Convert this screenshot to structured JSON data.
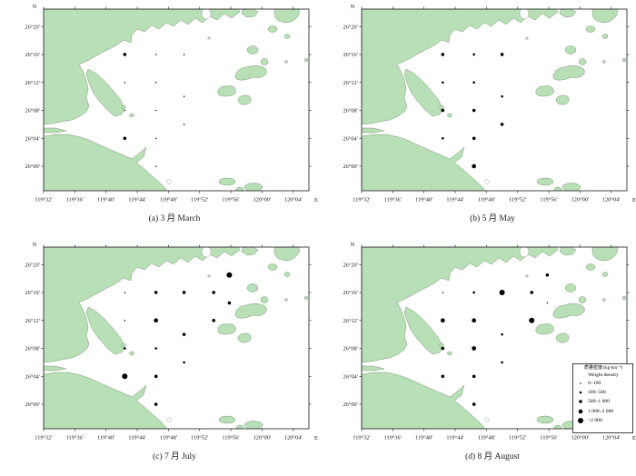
{
  "figure": {
    "bg": "#ffffff",
    "colors": {
      "land_fill": "#b8dfb5",
      "land_stroke": "#70906e",
      "sea_fill": "#ffffff",
      "frame": "#1a1a1a",
      "dot": "#000000"
    }
  },
  "chart_data": {
    "type": "scatter",
    "description": "Bubble maps of weight density at fixed sampling stations in a bay, four survey months",
    "axis": {
      "north_label": "N",
      "east_label": "E",
      "lon_tick_labels": [
        "119°32′",
        "119°36′",
        "119°40′",
        "119°44′",
        "119°48′",
        "119°52′",
        "119°56′",
        "120°00′",
        "120°04′"
      ],
      "lon_tick_arcmin": [
        32,
        36,
        40,
        44,
        48,
        52,
        56,
        60,
        64
      ],
      "lat_tick_labels": [
        "26°20′",
        "26°16′",
        "26°12′",
        "26°08′",
        "26°04′",
        "26°00′"
      ],
      "lat_tick_arcmin": [
        20,
        16,
        12,
        8,
        4,
        0
      ],
      "lon_range_arcmin_past_119E": [
        32,
        66
      ],
      "lat_range_arcmin_past_26N": [
        -3.5,
        22.5
      ]
    },
    "legend": {
      "title_cn": "质量密度/(kg·km⁻²)",
      "title_en": "Weight density",
      "classes": [
        {
          "label": "0~100",
          "r": 0.75
        },
        {
          "label": "100~500",
          "r": 1.3
        },
        {
          "label": "500~1 000",
          "r": 1.8
        },
        {
          "label": "1 000~2 000",
          "r": 2.35
        },
        {
          "label": ">2 000",
          "r": 3.0
        }
      ]
    },
    "stations": [
      {
        "lon_min": 42.4,
        "lat_min": 16
      },
      {
        "lon_min": 46.4,
        "lat_min": 16
      },
      {
        "lon_min": 50.0,
        "lat_min": 16
      },
      {
        "lon_min": 53.8,
        "lat_min": 16
      },
      {
        "lon_min": 55.8,
        "lat_min": 18.5
      },
      {
        "lon_min": 55.8,
        "lat_min": 14.5
      },
      {
        "lon_min": 42.4,
        "lat_min": 12
      },
      {
        "lon_min": 46.4,
        "lat_min": 12
      },
      {
        "lon_min": 53.8,
        "lat_min": 12
      },
      {
        "lon_min": 50.0,
        "lat_min": 10
      },
      {
        "lon_min": 42.4,
        "lat_min": 8
      },
      {
        "lon_min": 46.4,
        "lat_min": 8
      },
      {
        "lon_min": 50.0,
        "lat_min": 6
      },
      {
        "lon_min": 42.4,
        "lat_min": 4
      },
      {
        "lon_min": 46.4,
        "lat_min": 4
      },
      {
        "lon_min": 46.4,
        "lat_min": 0
      }
    ],
    "panels": [
      {
        "id": "a",
        "caption": "(a) 3 月 March",
        "month_cn": "3 月",
        "month_en": "March",
        "values": [
          3,
          1,
          1,
          0,
          0,
          0,
          1,
          1,
          0,
          1,
          1,
          1,
          1,
          3,
          1,
          1
        ]
      },
      {
        "id": "b",
        "caption": "(b) 5 月 May",
        "month_cn": "5 月",
        "month_en": "May",
        "values": [
          3,
          2,
          3,
          0,
          0,
          0,
          2,
          2,
          0,
          2,
          3,
          3,
          3,
          2,
          3,
          4
        ]
      },
      {
        "id": "c",
        "caption": "(c) 7 月 July",
        "month_cn": "7 月",
        "month_en": "July",
        "values": [
          1,
          3,
          3,
          3,
          5,
          3,
          1,
          4,
          3,
          3,
          2,
          2,
          2,
          5,
          3,
          3
        ]
      },
      {
        "id": "d",
        "caption": "(d) 8 月 August",
        "month_cn": "8 月",
        "month_en": "August",
        "values": [
          1,
          2,
          5,
          3,
          3,
          1,
          4,
          4,
          5,
          2,
          3,
          4,
          2,
          3,
          3,
          3
        ]
      }
    ]
  }
}
